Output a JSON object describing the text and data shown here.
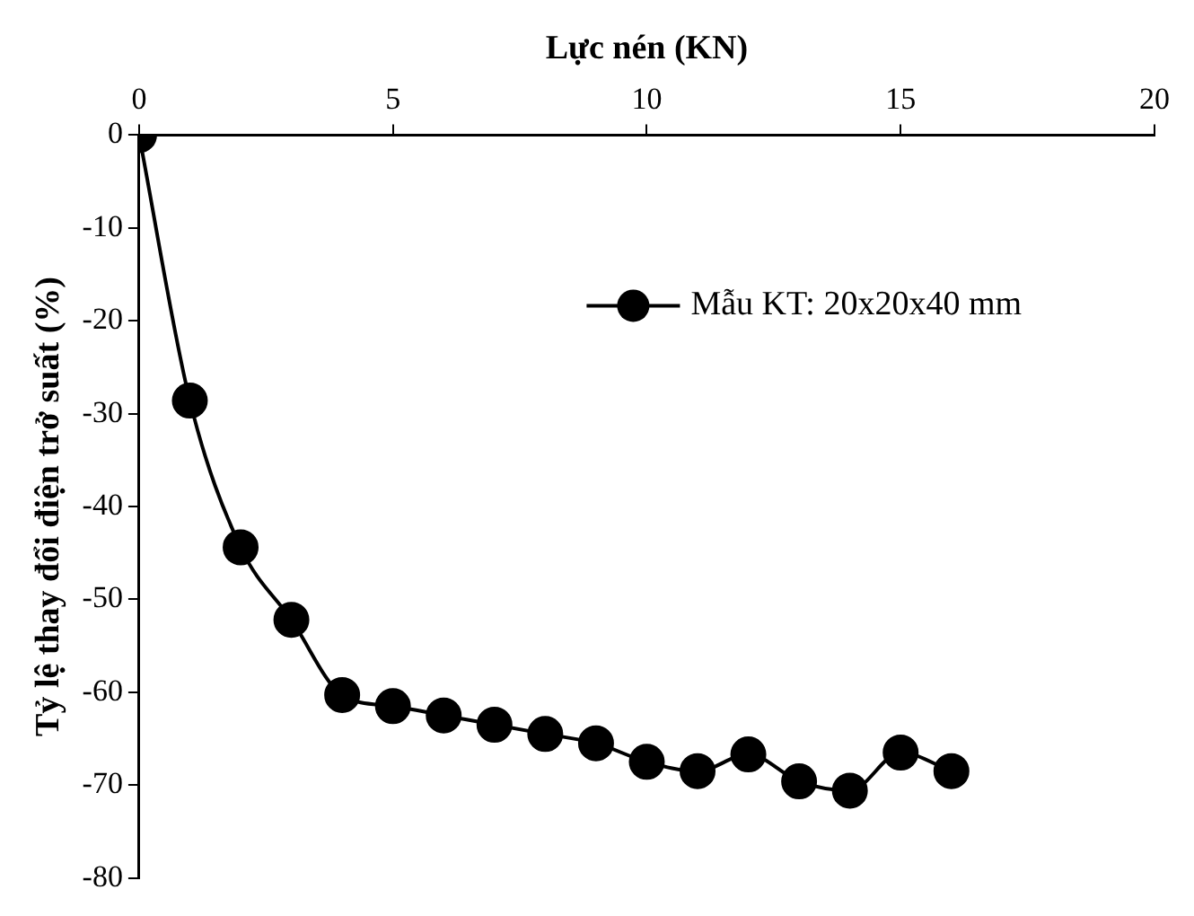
{
  "chart_data": {
    "type": "line",
    "xlabel": "Lực nén (KN)",
    "ylabel": "Tỷ lệ thay đổi điện trở suất (%)",
    "x": [
      0,
      1,
      2,
      3,
      4,
      5,
      6,
      7,
      8,
      9,
      10,
      11,
      12,
      13,
      14,
      15,
      16
    ],
    "series": [
      {
        "name": "Mẫu KT: 20x20x40 mm",
        "color": "#000000",
        "values": [
          0,
          -28.6,
          -44.4,
          -52.2,
          -60.3,
          -61.5,
          -62.5,
          -63.5,
          -64.5,
          -65.5,
          -67.5,
          -68.5,
          -66.7,
          -69.6,
          -70.6,
          -66.5,
          -68.5
        ]
      }
    ],
    "xlim": [
      0,
      20
    ],
    "xticks": [
      0,
      5,
      10,
      15,
      20
    ],
    "ylim": [
      -80,
      0
    ],
    "yticks": [
      0,
      -10,
      -20,
      -30,
      -40,
      -50,
      -60,
      -70,
      -80
    ],
    "grid": false,
    "legend": "top right",
    "marker": "circle",
    "line_style": "solid"
  }
}
